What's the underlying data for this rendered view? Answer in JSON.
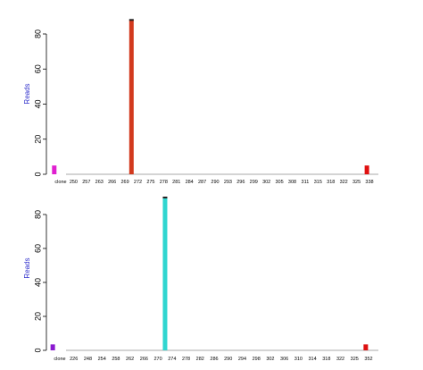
{
  "chart_data": [
    {
      "type": "bar",
      "ylabel": "Reads",
      "ylabel_color": "#3333cc",
      "ylim": [
        0,
        90
      ],
      "yticks": [
        0,
        20,
        40,
        60,
        80
      ],
      "categories": [
        "clone",
        "250",
        "257",
        "263",
        "266",
        "269",
        "272",
        "275",
        "278",
        "281",
        "284",
        "287",
        "290",
        "293",
        "296",
        "299",
        "302",
        "305",
        "308",
        "311",
        "315",
        "318",
        "322",
        "325",
        "338"
      ],
      "bars": [
        {
          "index": -0.5,
          "value": 5,
          "color": "#e020d0"
        },
        {
          "index": 5.5,
          "value": 88,
          "color": "#d23a1e",
          "cap_color": "#222222"
        },
        {
          "index": 23.8,
          "value": 5,
          "color": "#e01010"
        }
      ]
    },
    {
      "type": "bar",
      "ylabel": "Reads",
      "ylabel_color": "#3333cc",
      "ylim": [
        0,
        90
      ],
      "yticks": [
        0,
        20,
        40,
        60,
        80
      ],
      "categories": [
        "clone",
        "226",
        "248",
        "254",
        "258",
        "262",
        "266",
        "270",
        "274",
        "278",
        "282",
        "286",
        "290",
        "294",
        "298",
        "302",
        "306",
        "310",
        "314",
        "318",
        "322",
        "325",
        "352"
      ],
      "bars": [
        {
          "index": -0.5,
          "value": 3.5,
          "color": "#8a1ad0"
        },
        {
          "index": 7.5,
          "value": 90,
          "color": "#30d6d0",
          "cap_color": "#222222"
        },
        {
          "index": 21.8,
          "value": 3.5,
          "color": "#dd1111"
        }
      ]
    }
  ]
}
